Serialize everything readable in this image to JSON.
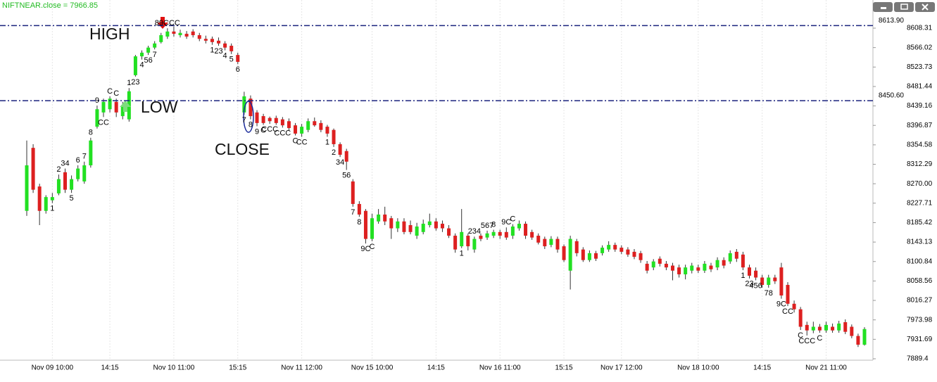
{
  "chart_data": {
    "type": "candlestick",
    "title": "NIFTNEAR.close = 7966.85",
    "up_color": "#22e022",
    "down_color": "#dd2020",
    "ylim": [
      7886.3,
      8669.5
    ],
    "yticks": [
      8608.31,
      8566.02,
      8523.73,
      8481.44,
      8439.16,
      8396.87,
      8354.58,
      8312.29,
      {
        "value": 8270,
        "label": "8270.00"
      },
      8227.71,
      8185.42,
      8143.13,
      8100.84,
      8058.56,
      8016.27,
      7973.98,
      7931.69,
      7889.4
    ],
    "x_labels": [
      {
        "index": 4,
        "label": "Nov 09 10:00"
      },
      {
        "index": 13,
        "label": "14:15"
      },
      {
        "index": 23,
        "label": "Nov 10 11:00"
      },
      {
        "index": 33,
        "label": "15:15"
      },
      {
        "index": 43,
        "label": "Nov 11 12:00"
      },
      {
        "index": 54,
        "label": "Nov 15 10:00"
      },
      {
        "index": 64,
        "label": "14:15"
      },
      {
        "index": 74,
        "label": "Nov 16 11:00"
      },
      {
        "index": 84,
        "label": "15:15"
      },
      {
        "index": 93,
        "label": "Nov 17 12:00"
      },
      {
        "index": 105,
        "label": "Nov 18 10:00"
      },
      {
        "index": 115,
        "label": "14:15"
      },
      {
        "index": 125,
        "label": "Nov 21 11:00"
      }
    ],
    "levels": [
      {
        "value": 8613.9,
        "label": "8613.90"
      },
      {
        "value": 8450.6,
        "label": "8450.60"
      }
    ],
    "notes": [
      "HIGH",
      "LOW",
      "CLOSE"
    ],
    "candles": [
      [
        8211,
        8364,
        8200,
        8310
      ],
      [
        8348,
        8356,
        8250,
        8257
      ],
      [
        8264,
        8270,
        8180,
        8211
      ],
      [
        8211,
        8245,
        8205,
        8241
      ],
      [
        8234,
        8250,
        8228,
        8241
      ],
      [
        8249,
        8290,
        8245,
        8280
      ],
      [
        8295,
        8303,
        8250,
        8257
      ],
      [
        8257,
        8288,
        8250,
        8280
      ],
      [
        8280,
        8310,
        8275,
        8303
      ],
      [
        8275,
        8318,
        8270,
        8310
      ],
      [
        8310,
        8370,
        8305,
        8364
      ],
      [
        8394,
        8440,
        8390,
        8432
      ],
      [
        8425,
        8455,
        8415,
        8448
      ],
      [
        8432,
        8460,
        8425,
        8455
      ],
      [
        8448,
        8455,
        8415,
        8425
      ],
      [
        8417,
        8448,
        8410,
        8440
      ],
      [
        8410,
        8478,
        8405,
        8471
      ],
      [
        8506,
        8550,
        8503,
        8547
      ],
      [
        8547,
        8560,
        8540,
        8555
      ],
      [
        8555,
        8570,
        8550,
        8566
      ],
      [
        8566,
        8580,
        8562,
        8575
      ],
      [
        8578,
        8598,
        8575,
        8593
      ],
      [
        8590,
        8608,
        8585,
        8601
      ],
      [
        8601,
        8612,
        8590,
        8596
      ],
      [
        8593,
        8605,
        8588,
        8598
      ],
      [
        8596,
        8602,
        8585,
        8590
      ],
      [
        8601,
        8606,
        8588,
        8593
      ],
      [
        8593,
        8598,
        8580,
        8585
      ],
      [
        8585,
        8592,
        8575,
        8581
      ],
      [
        8585,
        8590,
        8572,
        8578
      ],
      [
        8581,
        8588,
        8570,
        8575
      ],
      [
        8575,
        8580,
        8560,
        8566
      ],
      [
        8570,
        8575,
        8552,
        8558
      ],
      [
        8550,
        8555,
        8530,
        8535
      ],
      [
        8425,
        8470,
        8420,
        8460
      ],
      [
        8455,
        8462,
        8410,
        8417
      ],
      [
        8425,
        8430,
        8395,
        8402
      ],
      [
        8417,
        8422,
        8398,
        8402
      ],
      [
        8413,
        8416,
        8400,
        8406
      ],
      [
        8413,
        8418,
        8398,
        8402
      ],
      [
        8410,
        8415,
        8392,
        8397
      ],
      [
        8406,
        8412,
        8386,
        8391
      ],
      [
        8397,
        8402,
        8375,
        8379
      ],
      [
        8379,
        8400,
        8372,
        8394
      ],
      [
        8387,
        8412,
        8382,
        8406
      ],
      [
        8406,
        8414,
        8394,
        8397
      ],
      [
        8402,
        8408,
        8382,
        8387
      ],
      [
        8394,
        8398,
        8372,
        8379
      ],
      [
        8387,
        8390,
        8350,
        8356
      ],
      [
        8356,
        8360,
        8328,
        8333
      ],
      [
        8341,
        8346,
        8300,
        8318
      ],
      [
        8275,
        8280,
        8220,
        8226
      ],
      [
        8226,
        8232,
        8198,
        8203
      ],
      [
        8211,
        8215,
        8140,
        8150
      ],
      [
        8150,
        8205,
        8145,
        8195
      ],
      [
        8188,
        8215,
        8183,
        8203
      ],
      [
        8203,
        8220,
        8180,
        8188
      ],
      [
        8195,
        8200,
        8150,
        8173
      ],
      [
        8173,
        8195,
        8165,
        8188
      ],
      [
        8188,
        8195,
        8160,
        8165
      ],
      [
        8180,
        8190,
        8160,
        8165
      ],
      [
        8157,
        8185,
        8150,
        8177
      ],
      [
        8165,
        8192,
        8160,
        8183
      ],
      [
        8180,
        8205,
        8175,
        8188
      ],
      [
        8188,
        8195,
        8168,
        8173
      ],
      [
        8183,
        8190,
        8165,
        8173
      ],
      [
        8173,
        8180,
        8152,
        8157
      ],
      [
        8157,
        8162,
        8120,
        8127
      ],
      [
        8134,
        8215,
        8130,
        8165
      ],
      [
        8157,
        8162,
        8125,
        8134
      ],
      [
        8127,
        8155,
        8120,
        8150
      ],
      [
        8157,
        8162,
        8145,
        8150
      ],
      [
        8153,
        8168,
        8148,
        8162
      ],
      [
        8157,
        8170,
        8152,
        8165
      ],
      [
        8165,
        8170,
        8150,
        8157
      ],
      [
        8165,
        8175,
        8148,
        8153
      ],
      [
        8157,
        8182,
        8150,
        8177
      ],
      [
        8173,
        8190,
        8168,
        8183
      ],
      [
        8183,
        8188,
        8150,
        8157
      ],
      [
        8165,
        8170,
        8148,
        8153
      ],
      [
        8157,
        8162,
        8138,
        8142
      ],
      [
        8150,
        8155,
        8128,
        8134
      ],
      [
        8137,
        8156,
        8132,
        8150
      ],
      [
        8150,
        8155,
        8120,
        8127
      ],
      [
        8134,
        8138,
        8100,
        8104
      ],
      [
        8081,
        8157,
        8040,
        8150
      ],
      [
        8145,
        8150,
        8112,
        8119
      ],
      [
        8127,
        8132,
        8100,
        8104
      ],
      [
        8104,
        8125,
        8100,
        8119
      ],
      [
        8119,
        8124,
        8102,
        8107
      ],
      [
        8119,
        8136,
        8114,
        8131
      ],
      [
        8127,
        8145,
        8122,
        8137
      ],
      [
        8137,
        8142,
        8122,
        8127
      ],
      [
        8131,
        8136,
        8117,
        8122
      ],
      [
        8127,
        8132,
        8111,
        8116
      ],
      [
        8122,
        8128,
        8106,
        8111
      ],
      [
        8119,
        8124,
        8098,
        8104
      ],
      [
        8096,
        8102,
        8075,
        8081
      ],
      [
        8088,
        8106,
        8082,
        8101
      ],
      [
        8107,
        8112,
        8090,
        8096
      ],
      [
        8096,
        8102,
        8082,
        8088
      ],
      [
        8092,
        8098,
        8060,
        8081
      ],
      [
        8088,
        8094,
        8066,
        8073
      ],
      [
        8073,
        8094,
        8062,
        8088
      ],
      [
        8081,
        8098,
        8075,
        8092
      ],
      [
        8088,
        8094,
        8076,
        8081
      ],
      [
        8081,
        8102,
        8076,
        8096
      ],
      [
        8092,
        8098,
        8078,
        8084
      ],
      [
        8088,
        8110,
        8082,
        8104
      ],
      [
        8104,
        8110,
        8086,
        8092
      ],
      [
        8101,
        8125,
        8096,
        8119
      ],
      [
        8122,
        8128,
        8100,
        8107
      ],
      [
        8116,
        8122,
        8082,
        8088
      ],
      [
        8088,
        8094,
        8064,
        8070
      ],
      [
        8081,
        8088,
        8060,
        8066
      ],
      [
        8066,
        8072,
        8044,
        8050
      ],
      [
        8050,
        8072,
        8044,
        8066
      ],
      [
        8066,
        8072,
        8052,
        8058
      ],
      [
        8088,
        8098,
        8020,
        8027
      ],
      [
        8050,
        8056,
        8004,
        8009
      ],
      [
        8009,
        8016,
        7990,
        7997
      ],
      [
        7997,
        8002,
        7952,
        7959
      ],
      [
        7963,
        7970,
        7940,
        7951
      ],
      [
        7951,
        7970,
        7945,
        7959
      ],
      [
        7959,
        7965,
        7946,
        7951
      ],
      [
        7951,
        7970,
        7946,
        7963
      ],
      [
        7959,
        7966,
        7946,
        7951
      ],
      [
        7951,
        7972,
        7946,
        7966
      ],
      [
        7969,
        7975,
        7943,
        7948
      ],
      [
        7959,
        7964,
        7934,
        7939
      ],
      [
        7939,
        7944,
        7915,
        7920
      ],
      [
        7920,
        7958,
        7918,
        7954
      ]
    ],
    "annotations": [
      {
        "candle": 4,
        "text": "1",
        "side": "below"
      },
      {
        "candle": 5,
        "text": "2",
        "side": "above"
      },
      {
        "candle": 6,
        "text": "34",
        "side": "above"
      },
      {
        "candle": 7,
        "text": "5",
        "side": "below"
      },
      {
        "candle": 8,
        "text": "6",
        "side": "above"
      },
      {
        "candle": 9,
        "text": "7",
        "side": "above"
      },
      {
        "candle": 10,
        "text": "8",
        "side": "above"
      },
      {
        "candle": 11,
        "text": "9",
        "side": "above"
      },
      {
        "candle": 12,
        "text": "CC",
        "side": "below"
      },
      {
        "candle": 13,
        "text": "C",
        "side": "above"
      },
      {
        "candle": 14,
        "text": "C",
        "side": "above"
      },
      {
        "candle": 16,
        "text": "1",
        "side": "above"
      },
      {
        "candle": 17,
        "text": "23",
        "side": "below"
      },
      {
        "candle": 18,
        "text": "4",
        "side": "below"
      },
      {
        "candle": 19,
        "text": "56",
        "side": "below"
      },
      {
        "candle": 20,
        "text": "7",
        "side": "below"
      },
      {
        "candle": 22,
        "text": "89CCC",
        "side": "above"
      },
      {
        "candle": 29,
        "text": "1",
        "side": "below"
      },
      {
        "candle": 30,
        "text": "23",
        "side": "below"
      },
      {
        "candle": 31,
        "text": "4",
        "side": "below"
      },
      {
        "candle": 32,
        "text": "5",
        "side": "below"
      },
      {
        "candle": 33,
        "text": "6",
        "side": "below"
      },
      {
        "candle": 34,
        "text": "7",
        "side": "below"
      },
      {
        "candle": 35,
        "text": "8",
        "side": "below"
      },
      {
        "candle": 36,
        "text": "9",
        "side": "below"
      },
      {
        "candle": 37,
        "text": "C",
        "side": "below"
      },
      {
        "candle": 38,
        "text": "CCC",
        "side": "below"
      },
      {
        "candle": 40,
        "text": "CCC",
        "side": "below"
      },
      {
        "candle": 42,
        "text": "C",
        "side": "below"
      },
      {
        "candle": 43,
        "text": "CC",
        "side": "below"
      },
      {
        "candle": 47,
        "text": "1",
        "side": "below"
      },
      {
        "candle": 48,
        "text": "2",
        "side": "below"
      },
      {
        "candle": 49,
        "text": "34",
        "side": "below"
      },
      {
        "candle": 50,
        "text": "56",
        "side": "below"
      },
      {
        "candle": 51,
        "text": "7",
        "side": "below"
      },
      {
        "candle": 52,
        "text": "8",
        "side": "below"
      },
      {
        "candle": 53,
        "text": "9C",
        "side": "below"
      },
      {
        "candle": 54,
        "text": "C",
        "side": "below"
      },
      {
        "candle": 68,
        "text": "1",
        "side": "below"
      },
      {
        "candle": 70,
        "text": "234",
        "side": "above"
      },
      {
        "candle": 72,
        "text": "567",
        "side": "above"
      },
      {
        "candle": 73,
        "text": "8",
        "side": "above"
      },
      {
        "candle": 75,
        "text": "9C",
        "side": "above"
      },
      {
        "candle": 76,
        "text": "C",
        "side": "above"
      },
      {
        "candle": 112,
        "text": "1",
        "side": "below"
      },
      {
        "candle": 113,
        "text": "23",
        "side": "below"
      },
      {
        "candle": 114,
        "text": "456",
        "side": "below"
      },
      {
        "candle": 116,
        "text": "78",
        "side": "below"
      },
      {
        "candle": 118,
        "text": "9C",
        "side": "below"
      },
      {
        "candle": 119,
        "text": "CC",
        "side": "below"
      },
      {
        "candle": 121,
        "text": "C",
        "side": "below"
      },
      {
        "candle": 122,
        "text": "CCC",
        "side": "below"
      },
      {
        "candle": 124,
        "text": "C",
        "side": "below"
      }
    ]
  }
}
